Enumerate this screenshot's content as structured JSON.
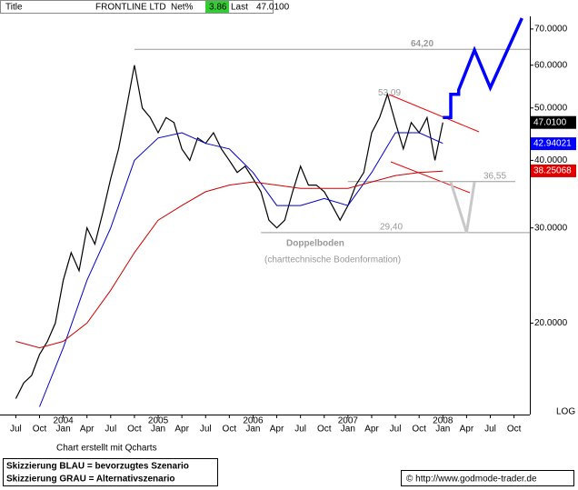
{
  "header": {
    "title": "Title",
    "name": "FRONTLINE LTD",
    "net_label": "Net%",
    "net": 3.86,
    "last_label": "Last",
    "last": {
      "value": 47.01,
      "label": "47.0100"
    }
  },
  "chart_data": {
    "type": "line",
    "log_scale": true,
    "ylim": [
      13.6,
      73.3
    ],
    "yticks": [
      {
        "value": 20,
        "label": "20.0000"
      },
      {
        "value": 30,
        "label": "30.0000"
      },
      {
        "value": 40,
        "label": "40.0000"
      },
      {
        "value": 50,
        "label": "50.0000"
      },
      {
        "value": 60,
        "label": "60.0000"
      },
      {
        "value": 70,
        "label": "70.0000"
      }
    ],
    "xlim": [
      "2003-05",
      "2008-12"
    ],
    "xticks": [
      {
        "value": "2003-07",
        "label": "Jul"
      },
      {
        "value": "2003-10",
        "label": "Oct"
      },
      {
        "value": "2004-01",
        "label": "Jan"
      },
      {
        "value": "2004-04",
        "label": "Apr"
      },
      {
        "value": "2004-07",
        "label": "Jul"
      },
      {
        "value": "2004-10",
        "label": "Oct"
      },
      {
        "value": "2005-01",
        "label": "Jan"
      },
      {
        "value": "2005-04",
        "label": "Apr"
      },
      {
        "value": "2005-07",
        "label": "Jul"
      },
      {
        "value": "2005-10",
        "label": "Oct"
      },
      {
        "value": "2006-01",
        "label": "Jan"
      },
      {
        "value": "2006-04",
        "label": "Apr"
      },
      {
        "value": "2006-07",
        "label": "Jul"
      },
      {
        "value": "2006-10",
        "label": "Oct"
      },
      {
        "value": "2007-01",
        "label": "Jan"
      },
      {
        "value": "2007-04",
        "label": "Apr"
      },
      {
        "value": "2007-07",
        "label": "Jul"
      },
      {
        "value": "2007-10",
        "label": "Oct"
      },
      {
        "value": "2008-01",
        "label": "Jan"
      },
      {
        "value": "2008-04",
        "label": "Apr"
      },
      {
        "value": "2008-07",
        "label": "Jul"
      },
      {
        "value": "2008-10",
        "label": "Oct"
      }
    ],
    "year_ticks": [
      {
        "value": "2004-01",
        "label": "2004"
      },
      {
        "value": "2005-01",
        "label": "2005"
      },
      {
        "value": "2006-01",
        "label": "2006"
      },
      {
        "value": "2007-01",
        "label": "2007"
      },
      {
        "value": "2008-01",
        "label": "2008"
      }
    ],
    "series": [
      {
        "name": "price",
        "color": "#000000",
        "width": 1.2,
        "x": [
          "2003-07",
          "2003-08",
          "2003-09",
          "2003-10",
          "2003-11",
          "2003-12",
          "2004-01",
          "2004-02",
          "2004-03",
          "2004-04",
          "2004-05",
          "2004-06",
          "2004-07",
          "2004-08",
          "2004-09",
          "2004-10",
          "2004-11",
          "2004-12",
          "2005-01",
          "2005-02",
          "2005-03",
          "2005-04",
          "2005-05",
          "2005-06",
          "2005-07",
          "2005-08",
          "2005-09",
          "2005-10",
          "2005-11",
          "2005-12",
          "2006-01",
          "2006-02",
          "2006-03",
          "2006-04",
          "2006-05",
          "2006-06",
          "2006-07",
          "2006-08",
          "2006-09",
          "2006-10",
          "2006-11",
          "2006-12",
          "2007-01",
          "2007-02",
          "2007-03",
          "2007-04",
          "2007-05",
          "2007-06",
          "2007-07",
          "2007-08",
          "2007-09",
          "2007-10",
          "2007-11",
          "2007-12",
          "2008-01"
        ],
        "values": [
          14.5,
          15.5,
          16,
          17.5,
          18.5,
          20,
          24,
          27,
          25,
          30,
          28,
          32,
          37,
          42,
          50,
          60,
          50,
          48,
          45,
          48,
          47,
          42,
          40,
          44,
          43,
          45,
          42,
          40,
          38,
          39,
          37,
          35,
          31,
          30,
          31,
          35,
          39,
          36,
          36,
          35,
          33,
          31,
          33,
          36,
          38,
          45,
          48,
          53,
          47,
          42,
          47,
          45,
          48,
          40,
          47
        ]
      },
      {
        "name": "ma-blue",
        "color": "#0000cc",
        "width": 1,
        "x": [
          "2003-10",
          "2004-01",
          "2004-04",
          "2004-07",
          "2004-10",
          "2005-01",
          "2005-04",
          "2005-07",
          "2005-10",
          "2006-01",
          "2006-04",
          "2006-07",
          "2006-10",
          "2007-01",
          "2007-04",
          "2007-07",
          "2007-10",
          "2008-01"
        ],
        "values": [
          14,
          18,
          24,
          30,
          40,
          44,
          45,
          43,
          42,
          38,
          33,
          33,
          34,
          33,
          38,
          45,
          45,
          43
        ]
      },
      {
        "name": "ma-red",
        "color": "#cc0000",
        "width": 1,
        "x": [
          "2003-07",
          "2003-10",
          "2004-01",
          "2004-04",
          "2004-07",
          "2004-10",
          "2005-01",
          "2005-04",
          "2005-07",
          "2005-10",
          "2006-01",
          "2006-04",
          "2006-07",
          "2006-10",
          "2007-01",
          "2007-04",
          "2007-07",
          "2007-10",
          "2008-01"
        ],
        "values": [
          18.5,
          18,
          18.5,
          20,
          23,
          27,
          31,
          33,
          35,
          36,
          36.5,
          36,
          35.5,
          35.5,
          35.5,
          36.5,
          37.5,
          38,
          38.2
        ]
      },
      {
        "name": "scenario-blue",
        "color": "#0000ff",
        "width": 3.5,
        "x": [
          "2008-01",
          "2008-02",
          "2008-02",
          "2008-03",
          "2008-03",
          "2008-05",
          "2008-07",
          "2008-11"
        ],
        "values": [
          48,
          48,
          53,
          53,
          54,
          64,
          54.5,
          73.3
        ]
      },
      {
        "name": "scenario-grey",
        "color": "#c8c8c8",
        "width": 3,
        "x": [
          "2008-02",
          "2008-04",
          "2008-05"
        ],
        "values": [
          36.5,
          29.4,
          36.5
        ]
      }
    ],
    "levels": [
      {
        "value": 64.2,
        "label": "64,20",
        "start": "2004-10"
      },
      {
        "value": 36.55,
        "label": "36,55",
        "start": "2007-01"
      },
      {
        "value": 29.4,
        "label": "29,40",
        "start": "2006-02"
      }
    ],
    "peak_label": {
      "value": 53.09,
      "label": "53,09"
    },
    "last_labels": [
      {
        "value": 47.01,
        "label": "47.0100",
        "color": "#000000"
      },
      {
        "value": 42.94021,
        "label": "42.94021",
        "color": "#0000ff"
      },
      {
        "value": 38.25068,
        "label": "38.25068",
        "color": "#e00000"
      }
    ],
    "annotations": {
      "pattern": "Doppelboden",
      "pattern_note": "(charttechnische Bodenformation)",
      "scale": "LOG"
    }
  },
  "footer": {
    "credit": "Chart erstellt mit Qcharts",
    "legend_blue": "Skizzierung BLAU = bevorzugtes Szenario",
    "legend_grey": "Skizzierung GRAU = Alternativszenario",
    "site": "© http://www.godmode-trader.de"
  }
}
